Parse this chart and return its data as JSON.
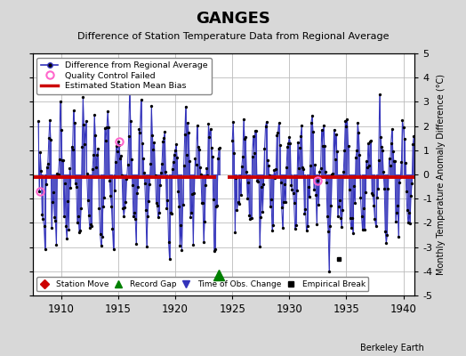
{
  "title": "GANGES",
  "subtitle": "Difference of Station Temperature Data from Regional Average",
  "ylabel": "Monthly Temperature Anomaly Difference (°C)",
  "watermark": "Berkeley Earth",
  "xlim": [
    1907.5,
    1941.0
  ],
  "ylim": [
    -5,
    5
  ],
  "yticks": [
    -5,
    -4,
    -3,
    -2,
    -1,
    0,
    1,
    2,
    3,
    4,
    5
  ],
  "xticks": [
    1910,
    1915,
    1920,
    1925,
    1930,
    1935,
    1940
  ],
  "bias1_y": -0.12,
  "bias1_start": 1907.5,
  "bias1_end": 1923.6,
  "bias2_y": -0.1,
  "bias2_start": 1924.6,
  "bias2_end": 1941.0,
  "record_gap_x": 1923.83,
  "record_gap_y": -4.15,
  "emp_break_x": 1934.33,
  "emp_break_y": -3.5,
  "qc1_x": 1908.17,
  "qc1_y": -0.7,
  "qc2_x": 1915.08,
  "qc2_y": 1.35,
  "qc3_x": 1932.5,
  "qc3_y": -0.25,
  "line_color": "#3333bb",
  "fill_color": "#9999dd",
  "bias_color": "#cc0000",
  "bg_color": "#d8d8d8",
  "plot_bg": "#ffffff",
  "grid_color": "#bbbbbb",
  "amplitude": 2.0,
  "noise_scale": 0.7
}
